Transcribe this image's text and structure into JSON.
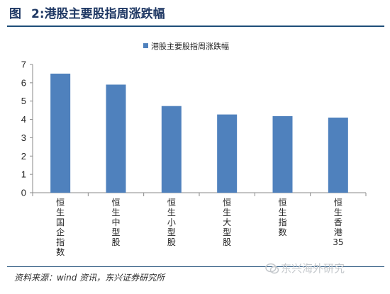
{
  "figure": {
    "number": "图",
    "title": "2:港股主要股指周涨跌幅"
  },
  "source_note": "资料来源：wind 资讯，东兴证券研究所",
  "watermark": "东兴海外研究",
  "colors": {
    "bar": "#4f81bd",
    "title": "#1f3864",
    "axis": "#898989"
  },
  "chart_data": {
    "type": "bar",
    "categories": [
      "恒生国企指数",
      "恒生中型股",
      "恒生小型股",
      "恒生大型股",
      "恒生指数",
      "恒生香港35"
    ],
    "series": [
      {
        "name": "港股主要股指周涨跌幅",
        "values": [
          6.5,
          5.9,
          4.73,
          4.27,
          4.18,
          4.1
        ]
      }
    ],
    "ylim": [
      0,
      7
    ],
    "yticks": [
      0,
      1,
      2,
      3,
      4,
      5,
      6,
      7
    ],
    "legend": "top-center",
    "grid": false
  }
}
